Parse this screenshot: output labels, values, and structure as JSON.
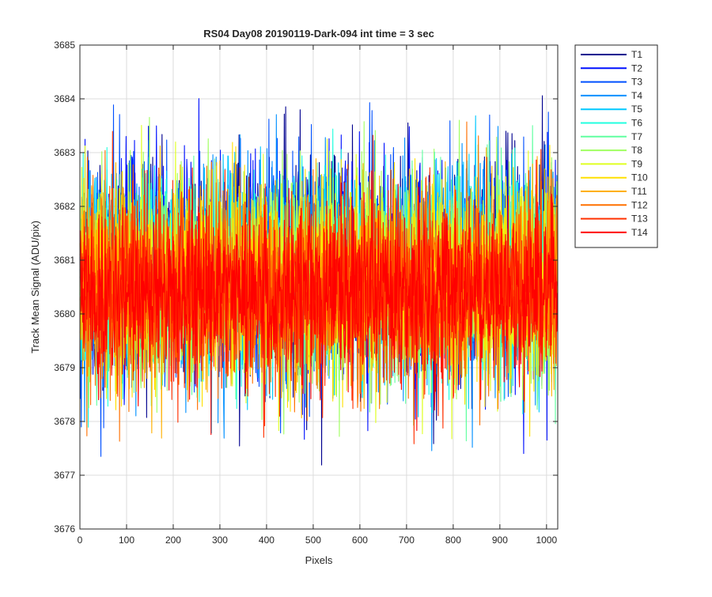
{
  "chart_data": {
    "type": "line",
    "title": "RS04 Day08 20190119-Dark-094 int time = 3 sec",
    "xlabel": "Pixels",
    "ylabel": "Track Mean Signal (ADU/pix)",
    "xlim": [
      0,
      1024
    ],
    "ylim": [
      3676,
      3685
    ],
    "xticks": [
      "0",
      "100",
      "200",
      "300",
      "400",
      "500",
      "600",
      "700",
      "800",
      "900",
      "1000"
    ],
    "yticks": [
      "3676",
      "3677",
      "3678",
      "3679",
      "3680",
      "3681",
      "3682",
      "3683",
      "3684",
      "3685"
    ],
    "grid": true,
    "legend_position": "outside-top-right",
    "num_points": 1024,
    "series": [
      {
        "name": "T1",
        "color": "#00008f",
        "mean": 3680.9,
        "std": 1.0
      },
      {
        "name": "T2",
        "color": "#0010ff",
        "mean": 3680.9,
        "std": 1.0
      },
      {
        "name": "T3",
        "color": "#0050ff",
        "mean": 3680.8,
        "std": 1.0
      },
      {
        "name": "T4",
        "color": "#0090ff",
        "mean": 3680.8,
        "std": 1.0
      },
      {
        "name": "T5",
        "color": "#00c8ff",
        "mean": 3680.8,
        "std": 0.95
      },
      {
        "name": "T6",
        "color": "#20ffdf",
        "mean": 3680.7,
        "std": 0.95
      },
      {
        "name": "T7",
        "color": "#60ffa0",
        "mean": 3680.7,
        "std": 0.95
      },
      {
        "name": "T8",
        "color": "#9fff60",
        "mean": 3680.7,
        "std": 0.95
      },
      {
        "name": "T9",
        "color": "#dfff20",
        "mean": 3680.6,
        "std": 0.95
      },
      {
        "name": "T10",
        "color": "#ffe000",
        "mean": 3680.6,
        "std": 0.9
      },
      {
        "name": "T11",
        "color": "#ffb000",
        "mean": 3680.6,
        "std": 0.9
      },
      {
        "name": "T12",
        "color": "#ff7000",
        "mean": 3680.5,
        "std": 0.9
      },
      {
        "name": "T13",
        "color": "#ff3000",
        "mean": 3680.5,
        "std": 0.85
      },
      {
        "name": "T14",
        "color": "#ff0000",
        "mean": 3680.4,
        "std": 0.8
      }
    ]
  }
}
